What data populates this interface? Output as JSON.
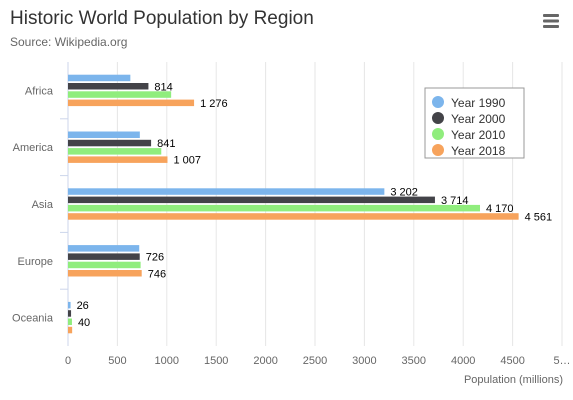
{
  "chart_data": {
    "type": "bar",
    "orientation": "horizontal",
    "title": "Historic World Population by Region",
    "subtitle": "Source: Wikipedia.org",
    "xlabel": "Population (millions)",
    "ylabel": "",
    "categories": [
      "Africa",
      "America",
      "Asia",
      "Europe",
      "Oceania"
    ],
    "x_ticks": [
      "0",
      "500",
      "1000",
      "1500",
      "2000",
      "2500",
      "3000",
      "3500",
      "4000",
      "4500",
      "5…"
    ],
    "xlim": [
      0,
      5000
    ],
    "grid": true,
    "legend_position": "top-right",
    "series": [
      {
        "name": "Year 1990",
        "color": "#7cb5ec",
        "values": [
          631,
          727,
          3202,
          721,
          26
        ],
        "labels": [
          "",
          "",
          "3 202",
          "",
          "26"
        ]
      },
      {
        "name": "Year 2000",
        "color": "#434348",
        "values": [
          814,
          841,
          3714,
          726,
          31
        ],
        "labels": [
          "814",
          "841",
          "3 714",
          "726",
          ""
        ]
      },
      {
        "name": "Year 2010",
        "color": "#90ed7d",
        "values": [
          1044,
          944,
          4170,
          735,
          40
        ],
        "labels": [
          "",
          "",
          "4 170",
          "",
          "40"
        ]
      },
      {
        "name": "Year 2018",
        "color": "#f7a35c",
        "values": [
          1276,
          1007,
          4561,
          746,
          42
        ],
        "labels": [
          "1 276",
          "1 007",
          "4 561",
          "746",
          ""
        ]
      }
    ]
  },
  "menu": {
    "icon": "hamburger-menu-icon"
  }
}
